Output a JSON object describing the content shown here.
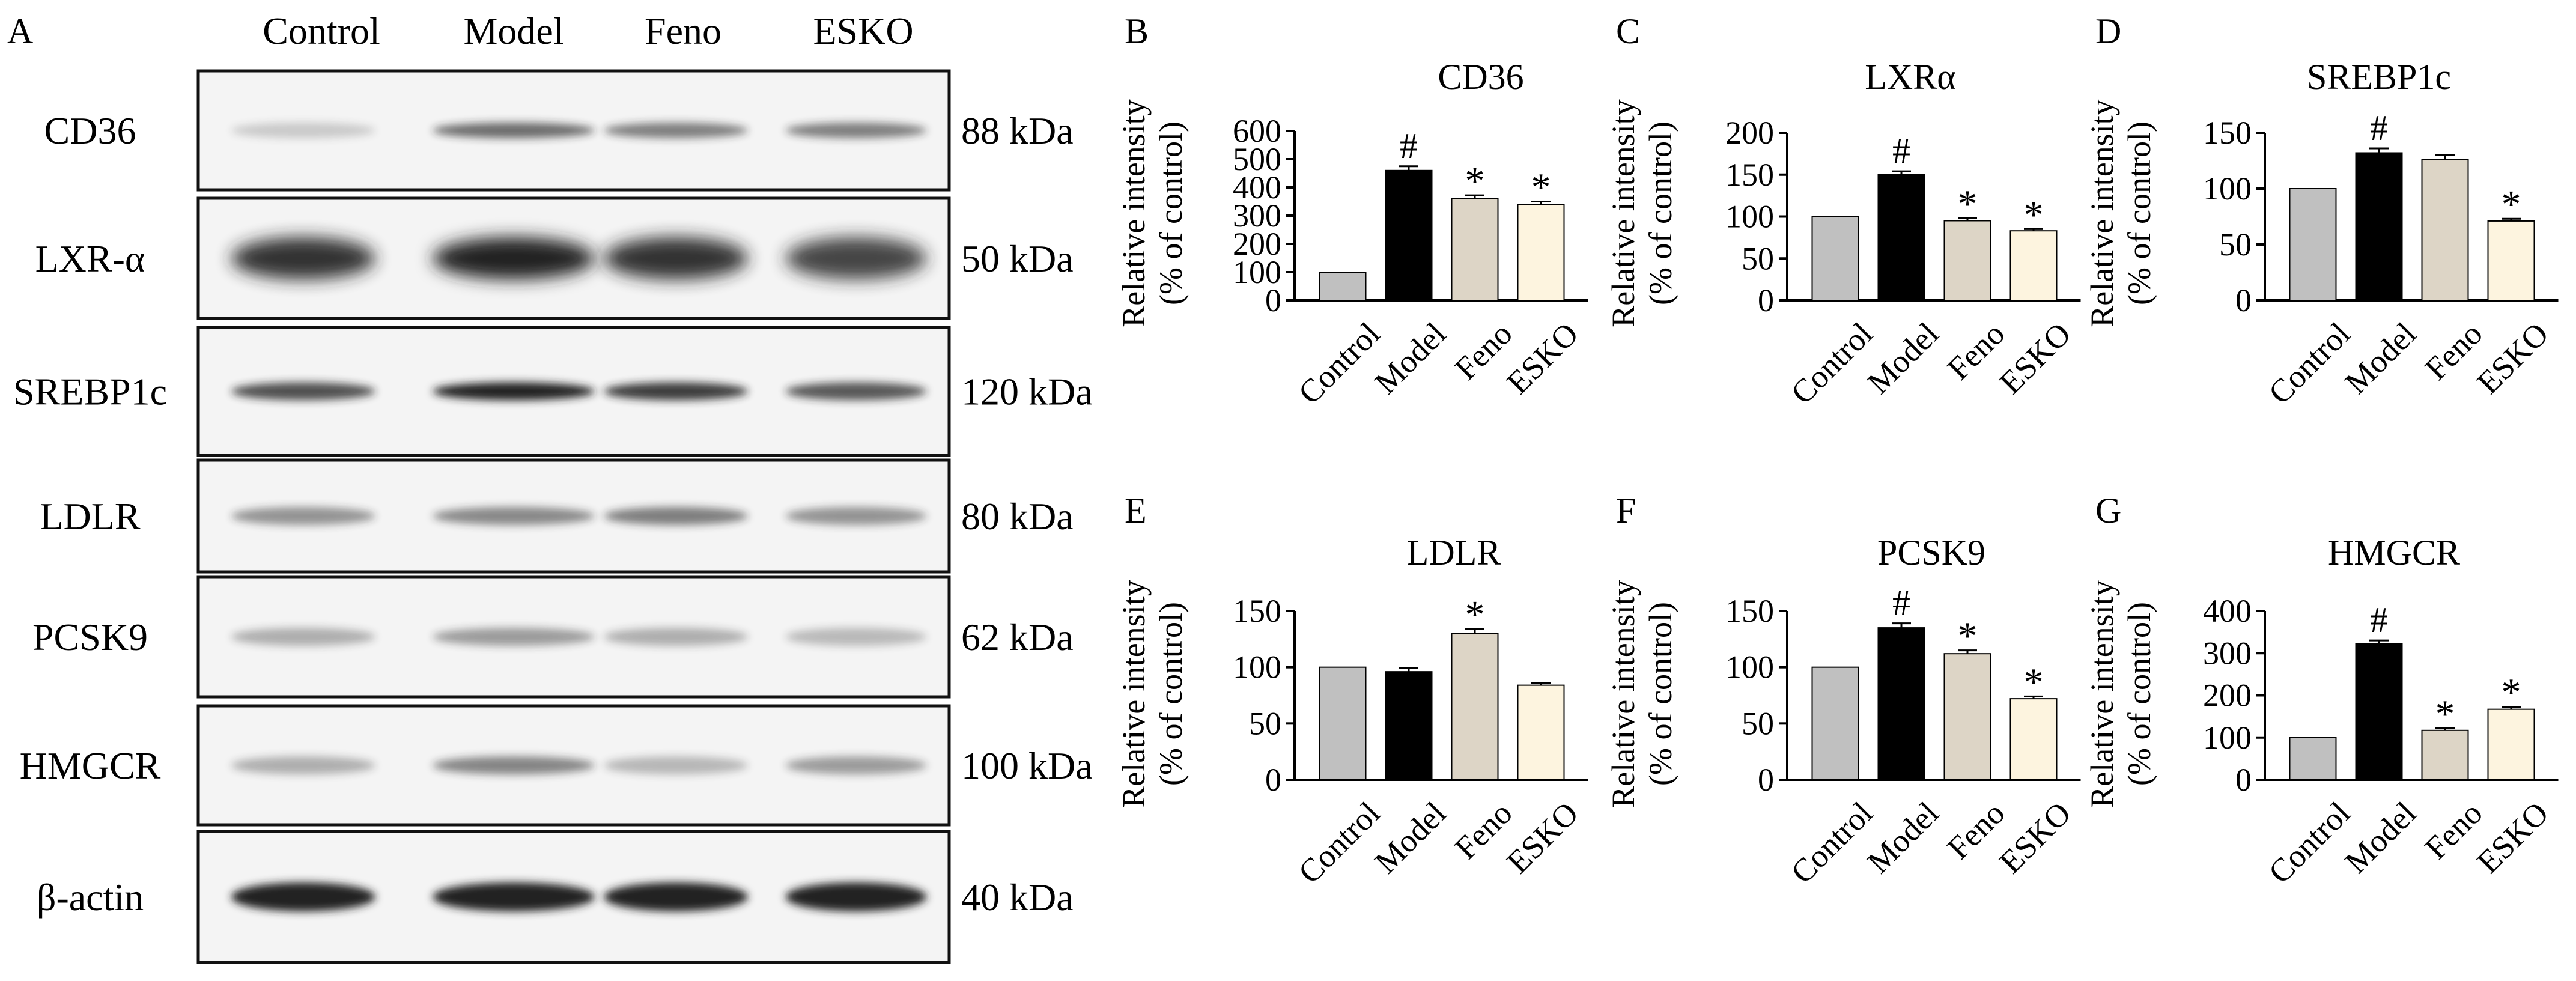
{
  "figure_type": "western blot + bar charts",
  "panel_a": {
    "letter": "A",
    "lanes": [
      "Control",
      "Model",
      "Feno",
      "ESKO"
    ],
    "blots": [
      {
        "protein": "CD36",
        "size": "88 kDa",
        "intensities": [
          0.06,
          0.55,
          0.45,
          0.45
        ],
        "kind": "faint"
      },
      {
        "protein": "LXR-α",
        "size": "50 kDa",
        "intensities": [
          0.85,
          1.0,
          0.85,
          0.75
        ],
        "kind": "smear"
      },
      {
        "protein": "SREBP1c",
        "size": "120 kDa",
        "intensities": [
          0.7,
          0.95,
          0.8,
          0.65
        ],
        "kind": "band"
      },
      {
        "protein": "LDLR",
        "size": "80 kDa",
        "intensities": [
          0.35,
          0.4,
          0.45,
          0.35
        ],
        "kind": "bulge"
      },
      {
        "protein": "PCSK9",
        "size": "62 kDa",
        "intensities": [
          0.2,
          0.3,
          0.2,
          0.14
        ],
        "kind": "band"
      },
      {
        "protein": "HMGCR",
        "size": "100 kDa",
        "intensities": [
          0.2,
          0.42,
          0.15,
          0.3
        ],
        "kind": "band"
      },
      {
        "protein": "β-actin",
        "size": "40 kDa",
        "intensities": [
          1.0,
          1.0,
          1.0,
          1.0
        ],
        "kind": "strong"
      }
    ]
  },
  "chart_data": [
    {
      "letter": "B",
      "type": "bar",
      "title": "CD36",
      "ylabel": "Relative intensity",
      "ylabel2": "(% of control)",
      "categories": [
        "Control",
        "Model",
        "Feno",
        "ESKO"
      ],
      "values": [
        100,
        460,
        360,
        340
      ],
      "errors": [
        0,
        15,
        12,
        10
      ],
      "marks": [
        "",
        "#",
        "*",
        "*"
      ],
      "ylim": [
        0,
        600
      ],
      "yticks": [
        0,
        100,
        200,
        300,
        400,
        500,
        600
      ]
    },
    {
      "letter": "C",
      "type": "bar",
      "title": "LXRα",
      "ylabel": "Relative intensity",
      "ylabel2": "(% of control)",
      "categories": [
        "Control",
        "Model",
        "Feno",
        "ESKO"
      ],
      "values": [
        100,
        150,
        95,
        83
      ],
      "errors": [
        0,
        4,
        3,
        2
      ],
      "marks": [
        "",
        "#",
        "*",
        "*"
      ],
      "ylim": [
        0,
        200
      ],
      "yticks": [
        0,
        50,
        100,
        150,
        200
      ]
    },
    {
      "letter": "D",
      "type": "bar",
      "title": "SREBP1c",
      "ylabel": "Relative intensity",
      "ylabel2": "(% of control)",
      "categories": [
        "Control",
        "Model",
        "Feno",
        "ESKO"
      ],
      "values": [
        100,
        132,
        126,
        71
      ],
      "errors": [
        0,
        4,
        4,
        2
      ],
      "marks": [
        "",
        "#",
        "",
        "*"
      ],
      "ylim": [
        0,
        150
      ],
      "yticks": [
        0,
        50,
        100,
        150
      ]
    },
    {
      "letter": "E",
      "type": "bar",
      "title": "LDLR",
      "ylabel": "Relative intensity",
      "ylabel2": "(% of control)",
      "categories": [
        "Control",
        "Model",
        "Feno",
        "ESKO"
      ],
      "values": [
        100,
        96,
        130,
        84
      ],
      "errors": [
        0,
        3,
        4,
        2
      ],
      "marks": [
        "",
        "",
        "*",
        ""
      ],
      "ylim": [
        0,
        150
      ],
      "yticks": [
        0,
        50,
        100,
        150
      ]
    },
    {
      "letter": "F",
      "type": "bar",
      "title": "PCSK9",
      "ylabel": "Relative intensity",
      "ylabel2": "(% of control)",
      "categories": [
        "Control",
        "Model",
        "Feno",
        "ESKO"
      ],
      "values": [
        100,
        135,
        112,
        72
      ],
      "errors": [
        0,
        4,
        3,
        2
      ],
      "marks": [
        "",
        "#",
        "*",
        "*"
      ],
      "ylim": [
        0,
        150
      ],
      "yticks": [
        0,
        50,
        100,
        150
      ]
    },
    {
      "letter": "G",
      "type": "bar",
      "title": "HMGCR",
      "ylabel": "Relative intensity",
      "ylabel2": "(% of control)",
      "categories": [
        "Control",
        "Model",
        "Feno",
        "ESKO"
      ],
      "values": [
        100,
        322,
        117,
        167
      ],
      "errors": [
        0,
        8,
        5,
        6
      ],
      "marks": [
        "",
        "#",
        "*",
        "*"
      ],
      "ylim": [
        0,
        400
      ],
      "yticks": [
        0,
        100,
        200,
        300,
        400
      ]
    }
  ],
  "colors": {
    "Control": "#c0c0c0",
    "Model": "#000000",
    "Feno": "#ddd5c6",
    "ESKO": "#fdf4df",
    "band": "#202020",
    "blot_bg": "#f4f4f4"
  }
}
